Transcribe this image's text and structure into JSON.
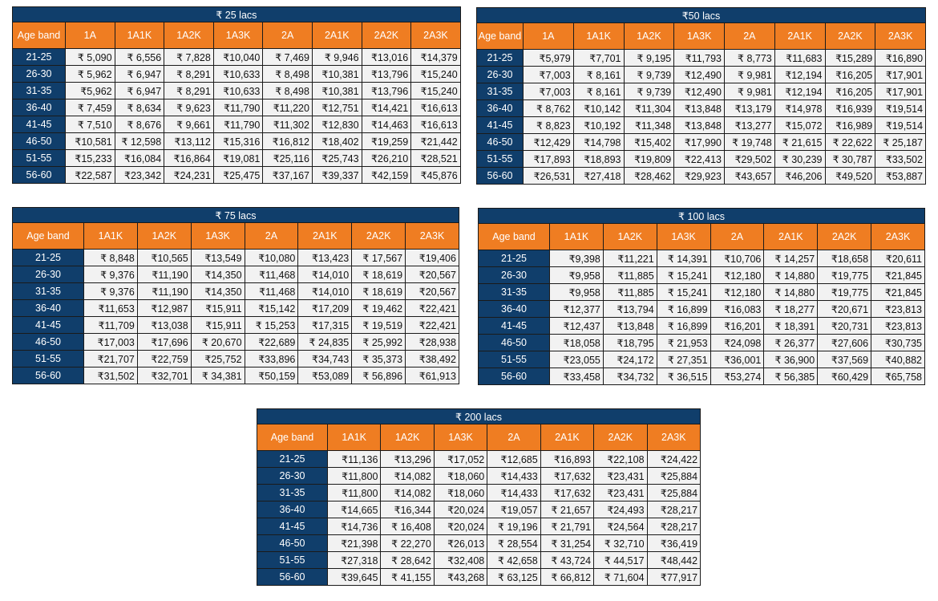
{
  "age_band_label": "Age band",
  "age_bands": [
    "21-25",
    "26-30",
    "31-35",
    "36-40",
    "41-45",
    "46-50",
    "51-55",
    "56-60"
  ],
  "tables": [
    {
      "title": "₹ 25 lacs",
      "columns": [
        "1A",
        "1A1K",
        "1A2K",
        "1A3K",
        "2A",
        "2A1K",
        "2A2K",
        "2A3K"
      ],
      "rows": [
        [
          "₹ 5,090",
          "₹ 6,556",
          "₹ 7,828",
          "₹10,040",
          "₹ 7,469",
          "₹ 9,946",
          "₹13,016",
          "₹14,379"
        ],
        [
          "₹ 5,962",
          "₹ 6,947",
          "₹ 8,291",
          "₹10,633",
          "₹ 8,498",
          "₹10,381",
          "₹13,796",
          "₹15,240"
        ],
        [
          "₹5,962",
          "₹ 6,947",
          "₹ 8,291",
          "₹10,633",
          "₹ 8,498",
          "₹10,381",
          "₹13,796",
          "₹15,240"
        ],
        [
          "₹ 7,459",
          "₹ 8,634",
          "₹ 9,623",
          "₹11,790",
          "₹11,220",
          "₹12,751",
          "₹14,421",
          "₹16,613"
        ],
        [
          "₹ 7,510",
          "₹ 8,676",
          "₹ 9,661",
          "₹11,790",
          "₹11,302",
          "₹12,830",
          "₹14,463",
          "₹16,613"
        ],
        [
          "₹10,581",
          "₹ 12,598",
          "₹13,112",
          "₹15,316",
          "₹16,812",
          "₹18,402",
          "₹19,259",
          "₹21,442"
        ],
        [
          "₹15,233",
          "₹16,084",
          "₹16,864",
          "₹19,081",
          "₹25,116",
          "₹25,743",
          "₹26,210",
          "₹28,521"
        ],
        [
          "₹22,587",
          "₹23,342",
          "₹24,231",
          "₹25,475",
          "₹37,167",
          "₹39,337",
          "₹42,159",
          "₹45,876"
        ]
      ]
    },
    {
      "title": "₹50 lacs",
      "columns": [
        "1A",
        "1A1K",
        "1A2K",
        "1A3K",
        "2A",
        "2A1K",
        "2A2K",
        "2A3K"
      ],
      "rows": [
        [
          "₹5,979",
          "₹7,701",
          "₹ 9,195",
          "₹11,793",
          "₹ 8,773",
          "₹11,683",
          "₹15,289",
          "₹16,890"
        ],
        [
          "₹7,003",
          "₹ 8,161",
          "₹ 9,739",
          "₹12,490",
          "₹ 9,981",
          "₹12,194",
          "₹16,205",
          "₹17,901"
        ],
        [
          "₹7,003",
          "₹ 8,161",
          "₹ 9,739",
          "₹12,490",
          "₹ 9,981",
          "₹12,194",
          "₹16,205",
          "₹17,901"
        ],
        [
          "₹ 8,762",
          "₹10,142",
          "₹11,304",
          "₹13,848",
          "₹13,179",
          "₹14,978",
          "₹16,939",
          "₹19,514"
        ],
        [
          "₹ 8,823",
          "₹10,192",
          "₹11,348",
          "₹13,848",
          "₹13,277",
          "₹15,072",
          "₹16,989",
          "₹19,514"
        ],
        [
          "₹12,429",
          "₹14,798",
          "₹15,402",
          "₹17,990",
          "₹ 19,748",
          "₹ 21,615",
          "₹ 22,622",
          "₹ 25,187"
        ],
        [
          "₹17,893",
          "₹18,893",
          "₹19,809",
          "₹22,413",
          "₹29,502",
          "₹ 30,239",
          "₹ 30,787",
          "₹33,502"
        ],
        [
          "₹26,531",
          "₹27,418",
          "₹28,462",
          "₹29,923",
          "₹43,657",
          "₹46,206",
          "₹49,520",
          "₹53,887"
        ]
      ]
    },
    {
      "title": "₹ 75 lacs",
      "columns": [
        "1A1K",
        "1A2K",
        "1A3K",
        "2A",
        "2A1K",
        "2A2K",
        "2A3K"
      ],
      "rows": [
        [
          "₹ 8,848",
          "₹10,565",
          "₹13,549",
          "₹10,080",
          "₹13,423",
          "₹ 17,567",
          "₹19,406"
        ],
        [
          "₹ 9,376",
          "₹11,190",
          "₹14,350",
          "₹11,468",
          "₹14,010",
          "₹ 18,619",
          "₹20,567"
        ],
        [
          "₹ 9,376",
          "₹11,190",
          "₹14,350",
          "₹11,468",
          "₹14,010",
          "₹ 18,619",
          "₹20,567"
        ],
        [
          "₹11,653",
          "₹12,987",
          "₹15,911",
          "₹15,142",
          "₹17,209",
          "₹ 19,462",
          "₹22,421"
        ],
        [
          "₹11,709",
          "₹13,038",
          "₹15,911",
          "₹ 15,253",
          "₹17,315",
          "₹ 19,519",
          "₹22,421"
        ],
        [
          "₹17,003",
          "₹17,696",
          "₹ 20,670",
          "₹22,689",
          "₹ 24,835",
          "₹ 25,992",
          "₹28,938"
        ],
        [
          "₹21,707",
          "₹22,759",
          "₹25,752",
          "₹33,896",
          "₹34,743",
          "₹ 35,373",
          "₹38,492"
        ],
        [
          "₹31,502",
          "₹32,701",
          "₹ 34,381",
          "₹50,159",
          "₹53,089",
          "₹ 56,896",
          "₹61,913"
        ]
      ]
    },
    {
      "title": "₹ 100 lacs",
      "columns": [
        "1A1K",
        "1A2K",
        "1A3K",
        "2A",
        "2A1K",
        "2A2K",
        "2A3K"
      ],
      "rows": [
        [
          "₹9,398",
          "₹11,221",
          "₹ 14,391",
          "₹10,706",
          "₹ 14,257",
          "₹18,658",
          "₹20,611"
        ],
        [
          "₹9,958",
          "₹11,885",
          "₹ 15,241",
          "₹12,180",
          "₹ 14,880",
          "₹19,775",
          "₹21,845"
        ],
        [
          "₹9,958",
          "₹11,885",
          "₹ 15,241",
          "₹12,180",
          "₹ 14,880",
          "₹19,775",
          "₹21,845"
        ],
        [
          "₹12,377",
          "₹13,794",
          "₹ 16,899",
          "₹16,083",
          "₹ 18,277",
          "₹20,671",
          "₹23,813"
        ],
        [
          "₹12,437",
          "₹13,848",
          "₹ 16,899",
          "₹16,201",
          "₹ 18,391",
          "₹20,731",
          "₹23,813"
        ],
        [
          "₹18,058",
          "₹18,795",
          "₹ 21,953",
          "₹24,098",
          "₹ 26,377",
          "₹27,606",
          "₹30,735"
        ],
        [
          "₹23,055",
          "₹24,172",
          "₹ 27,351",
          "₹36,001",
          "₹ 36,900",
          "₹37,569",
          "₹40,882"
        ],
        [
          "₹33,458",
          "₹34,732",
          "₹ 36,515",
          "₹53,274",
          "₹ 56,385",
          "₹60,429",
          "₹65,758"
        ]
      ]
    },
    {
      "title": "₹ 200 lacs",
      "columns": [
        "1A1K",
        "1A2K",
        "1A3K",
        "2A",
        "2A1K",
        "2A2K",
        "2A3K"
      ],
      "rows": [
        [
          "₹11,136",
          "₹13,296",
          "₹17,052",
          "₹12,685",
          "₹16,893",
          "₹22,108",
          "₹24,422"
        ],
        [
          "₹11,800",
          "₹14,082",
          "₹18,060",
          "₹14,433",
          "₹17,632",
          "₹23,431",
          "₹25,884"
        ],
        [
          "₹11,800",
          "₹14,082",
          "₹18,060",
          "₹14,433",
          "₹17,632",
          "₹23,431",
          "₹25,884"
        ],
        [
          "₹14,665",
          "₹16,344",
          "₹20,024",
          "₹19,057",
          "₹ 21,657",
          "₹24,493",
          "₹28,217"
        ],
        [
          "₹14,736",
          "₹ 16,408",
          "₹20,024",
          "₹ 19,196",
          "₹ 21,791",
          "₹24,564",
          "₹28,217"
        ],
        [
          "₹21,398",
          "₹ 22,270",
          "₹26,013",
          "₹ 28,554",
          "₹ 31,254",
          "₹ 32,710",
          "₹36,419"
        ],
        [
          "₹27,318",
          "₹ 28,642",
          "₹32,408",
          "₹ 42,658",
          "₹ 43,724",
          "₹ 44,517",
          "₹48,442"
        ],
        [
          "₹39,645",
          "₹ 41,155",
          "₹43,268",
          "₹ 63,125",
          "₹ 66,812",
          "₹ 71,604",
          "₹77,917"
        ]
      ]
    }
  ]
}
